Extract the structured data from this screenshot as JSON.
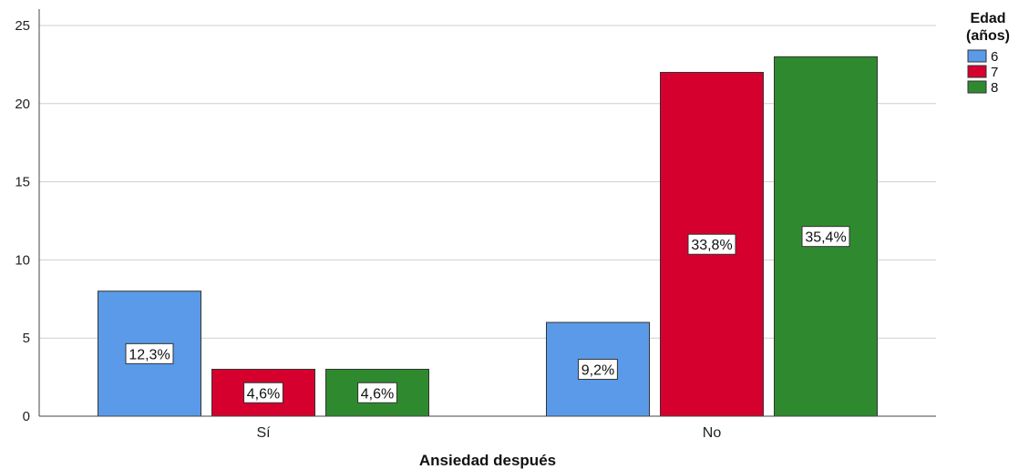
{
  "chart_data": {
    "type": "bar",
    "title": "",
    "xlabel": "Ansiedad después",
    "ylabel": "",
    "categories": [
      "Sí",
      "No"
    ],
    "ylim": [
      0,
      25
    ],
    "yticks": [
      0,
      5,
      10,
      15,
      20,
      25
    ],
    "grid": true,
    "legend": {
      "title_lines": [
        "Edad",
        "(años)"
      ],
      "placement": "right"
    },
    "series": [
      {
        "name": "6",
        "color": "#5b9ae8",
        "values": [
          8,
          6
        ],
        "labels": [
          "12,3%",
          "9,2%"
        ]
      },
      {
        "name": "7",
        "color": "#d6002f",
        "values": [
          3,
          22
        ],
        "labels": [
          "4,6%",
          "33,8%"
        ]
      },
      {
        "name": "8",
        "color": "#2f8a2f",
        "values": [
          3,
          23
        ],
        "labels": [
          "4,6%",
          "35,4%"
        ]
      }
    ]
  }
}
